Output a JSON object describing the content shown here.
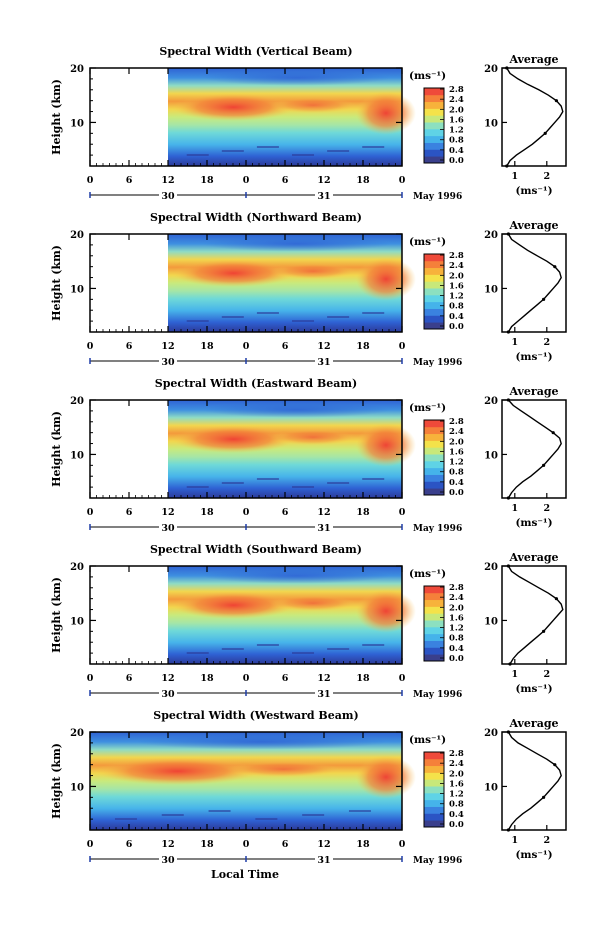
{
  "figure": {
    "xlabel": "Local Time",
    "month_label": "May 1996",
    "ylabel": "Height (km)",
    "unit_label": "(ms⁻¹)",
    "average_title": "Average",
    "x_tick_labels": [
      "0",
      "6",
      "12",
      "18",
      "0",
      "6",
      "12",
      "18",
      "0"
    ],
    "day_labels": [
      "30",
      "31"
    ],
    "colorbar_ticks": [
      "0.0",
      "0.4",
      "0.8",
      "1.2",
      "1.6",
      "2.0",
      "2.4",
      "2.8"
    ],
    "colorbar_colors": [
      "#3a3f8c",
      "#2b54c4",
      "#3a82e0",
      "#45b3ea",
      "#5fd3e6",
      "#8ce0c0",
      "#c8e87a",
      "#f4e24a",
      "#f7b23b",
      "#f5803a",
      "#ef4a3a"
    ]
  },
  "chart_data": [
    {
      "type": "heatmap",
      "title": "Spectral Width (Vertical Beam)",
      "ylabel": "Height (km)",
      "y_ticks": [
        "20",
        "10"
      ],
      "ylim": [
        2,
        20
      ],
      "x_ticks": [
        "0",
        "6",
        "12",
        "18",
        "0",
        "6",
        "12",
        "18",
        "0"
      ],
      "data_start_hour": 12,
      "color_range": [
        0.0,
        2.8
      ],
      "peak_region": "9-15 km",
      "average_profile": {
        "title": "Average",
        "x_ticks": [
          "1",
          "2"
        ],
        "xlim": [
          0.6,
          2.6
        ],
        "heights_km": [
          2,
          3,
          4,
          5,
          6,
          7,
          8,
          9,
          10,
          11,
          12,
          13,
          14,
          15,
          16,
          17,
          18,
          19,
          20
        ],
        "values_ms": [
          0.75,
          0.85,
          1.05,
          1.3,
          1.55,
          1.75,
          1.95,
          2.1,
          2.25,
          2.4,
          2.5,
          2.45,
          2.3,
          2.05,
          1.75,
          1.4,
          1.1,
          0.85,
          0.75
        ]
      }
    },
    {
      "type": "heatmap",
      "title": "Spectral Width (Northward Beam)",
      "ylabel": "Height (km)",
      "y_ticks": [
        "20",
        "10"
      ],
      "ylim": [
        2,
        20
      ],
      "x_ticks": [
        "0",
        "6",
        "12",
        "18",
        "0",
        "6",
        "12",
        "18",
        "0"
      ],
      "data_start_hour": 12,
      "color_range": [
        0.0,
        2.8
      ],
      "peak_region": "9-15 km",
      "average_profile": {
        "title": "Average",
        "x_ticks": [
          "1",
          "2"
        ],
        "xlim": [
          0.6,
          2.6
        ],
        "heights_km": [
          2,
          3,
          4,
          5,
          6,
          7,
          8,
          9,
          10,
          11,
          12,
          13,
          14,
          15,
          16,
          17,
          18,
          19,
          20
        ],
        "values_ms": [
          0.8,
          0.9,
          1.1,
          1.3,
          1.5,
          1.7,
          1.9,
          2.05,
          2.2,
          2.35,
          2.45,
          2.4,
          2.25,
          2.0,
          1.7,
          1.4,
          1.15,
          0.9,
          0.8
        ]
      }
    },
    {
      "type": "heatmap",
      "title": "Spectral Width (Eastward Beam)",
      "ylabel": "Height (km)",
      "y_ticks": [
        "20",
        "10"
      ],
      "ylim": [
        2,
        20
      ],
      "x_ticks": [
        "0",
        "6",
        "12",
        "18",
        "0",
        "6",
        "12",
        "18",
        "0"
      ],
      "data_start_hour": 12,
      "color_range": [
        0.0,
        2.8
      ],
      "peak_region": "9-15 km",
      "average_profile": {
        "title": "Average",
        "x_ticks": [
          "1",
          "2"
        ],
        "xlim": [
          0.6,
          2.6
        ],
        "heights_km": [
          2,
          3,
          4,
          5,
          6,
          7,
          8,
          9,
          10,
          11,
          12,
          13,
          14,
          15,
          16,
          17,
          18,
          19,
          20
        ],
        "values_ms": [
          0.8,
          0.9,
          1.05,
          1.25,
          1.5,
          1.7,
          1.9,
          2.05,
          2.2,
          2.35,
          2.45,
          2.4,
          2.2,
          1.95,
          1.7,
          1.45,
          1.2,
          0.95,
          0.8
        ]
      }
    },
    {
      "type": "heatmap",
      "title": "Spectral Width (Southward Beam)",
      "ylabel": "Height (km)",
      "y_ticks": [
        "20",
        "10"
      ],
      "ylim": [
        2,
        20
      ],
      "x_ticks": [
        "0",
        "6",
        "12",
        "18",
        "0",
        "6",
        "12",
        "18",
        "0"
      ],
      "data_start_hour": 12,
      "color_range": [
        0.0,
        2.8
      ],
      "peak_region": "9-15 km",
      "average_profile": {
        "title": "Average",
        "x_ticks": [
          "1",
          "2"
        ],
        "xlim": [
          0.6,
          2.6
        ],
        "heights_km": [
          2,
          3,
          4,
          5,
          6,
          7,
          8,
          9,
          10,
          11,
          12,
          13,
          14,
          15,
          16,
          17,
          18,
          19,
          20
        ],
        "values_ms": [
          0.85,
          0.95,
          1.1,
          1.3,
          1.5,
          1.7,
          1.9,
          2.05,
          2.2,
          2.35,
          2.5,
          2.45,
          2.3,
          2.05,
          1.75,
          1.45,
          1.15,
          0.9,
          0.8
        ]
      }
    },
    {
      "type": "heatmap",
      "title": "Spectral Width (Westward Beam)",
      "ylabel": "Height (km)",
      "y_ticks": [
        "20",
        "10"
      ],
      "ylim": [
        2,
        20
      ],
      "x_ticks": [
        "0",
        "6",
        "12",
        "18",
        "0",
        "6",
        "12",
        "18",
        "0"
      ],
      "data_start_hour": 0,
      "color_range": [
        0.0,
        2.8
      ],
      "peak_region": "9-15 km",
      "average_profile": {
        "title": "Average",
        "x_ticks": [
          "1",
          "2"
        ],
        "xlim": [
          0.6,
          2.6
        ],
        "heights_km": [
          2,
          3,
          4,
          5,
          6,
          7,
          8,
          9,
          10,
          11,
          12,
          13,
          14,
          15,
          16,
          17,
          18,
          19,
          20
        ],
        "values_ms": [
          0.8,
          0.9,
          1.05,
          1.25,
          1.5,
          1.7,
          1.9,
          2.05,
          2.2,
          2.35,
          2.45,
          2.4,
          2.25,
          2.0,
          1.7,
          1.4,
          1.1,
          0.9,
          0.8
        ]
      }
    }
  ]
}
